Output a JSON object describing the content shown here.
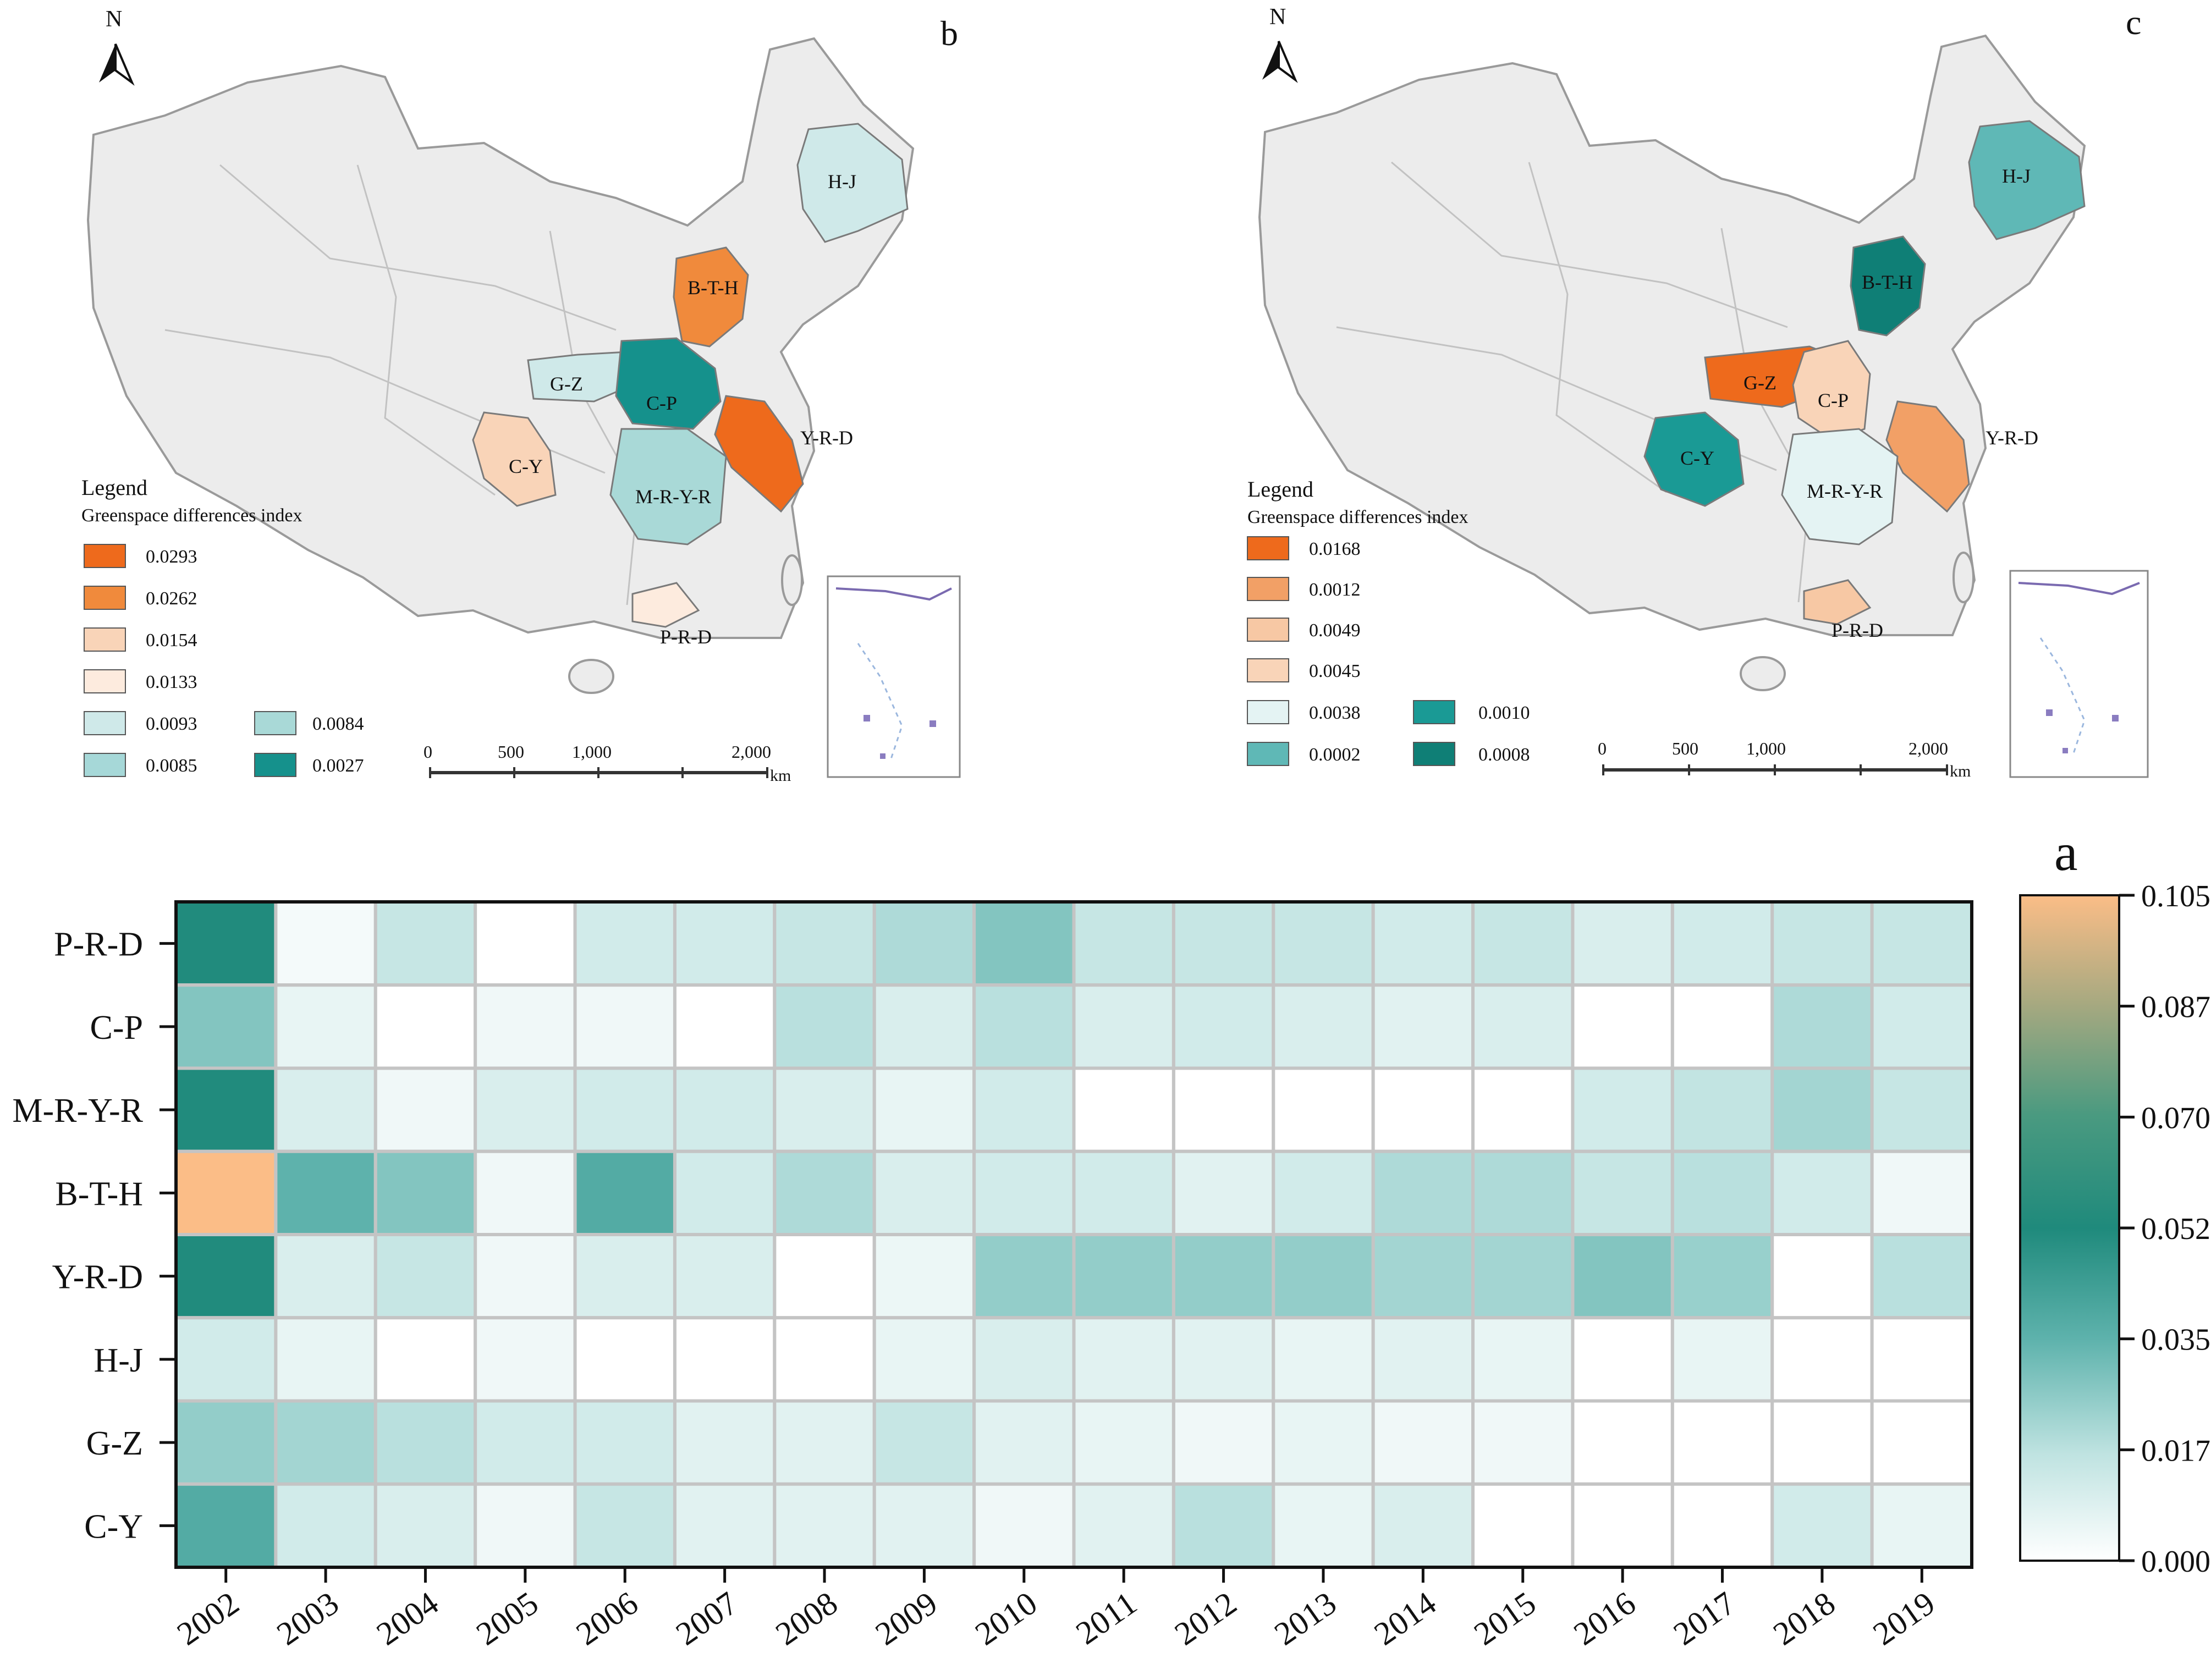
{
  "map_b": {
    "panel_label": "b",
    "north": "N",
    "legend_title": "Legend",
    "legend_subtitle": "Greenspace differences  index",
    "legend": [
      {
        "value": "0.0293",
        "color": "#ee6a1c"
      },
      {
        "value": "0.0262",
        "color": "#f08a3c"
      },
      {
        "value": "0.0154",
        "color": "#f9d4b8"
      },
      {
        "value": "0.0133",
        "color": "#fdebde"
      },
      {
        "value": "0.0093",
        "color": "#cfe9e9"
      },
      {
        "value": "0.0085",
        "color": "#a6d8d8"
      },
      {
        "value": "0.0084",
        "color": "#a9d9d7"
      },
      {
        "value": "0.0027",
        "color": "#15918c"
      }
    ],
    "regions": [
      {
        "label": "H-J",
        "color": "#cfe9e9"
      },
      {
        "label": "B-T-H",
        "color": "#f08a3c"
      },
      {
        "label": "G-Z",
        "color": "#cfe9e9"
      },
      {
        "label": "C-P",
        "color": "#15918c"
      },
      {
        "label": "Y-R-D",
        "color": "#ee6a1c"
      },
      {
        "label": "C-Y",
        "color": "#f9d4b8"
      },
      {
        "label": "M-R-Y-R",
        "color": "#a9d9d7"
      },
      {
        "label": "P-R-D",
        "color": "#fdebde"
      }
    ],
    "scale": [
      "0",
      "500",
      "1,000",
      "2,000"
    ],
    "scale_unit": "km"
  },
  "map_c": {
    "panel_label": "c",
    "north": "N",
    "legend_title": "Legend",
    "legend_subtitle": "Greenspace differences  index",
    "legend": [
      {
        "value": "0.0168",
        "color": "#ee6a1c"
      },
      {
        "value": "0.0012",
        "color": "#f2a066"
      },
      {
        "value": "0.0049",
        "color": "#f7c8a4"
      },
      {
        "value": "0.0045",
        "color": "#f9d4b8"
      },
      {
        "value": "0.0038",
        "color": "#e4f3f3"
      },
      {
        "value": "0.0002",
        "color": "#5fb8b6"
      },
      {
        "value": "0.0010",
        "color": "#1a9a95"
      },
      {
        "value": "0.0008",
        "color": "#0f7f76"
      }
    ],
    "regions": [
      {
        "label": "H-J",
        "color": "#5fb8b6"
      },
      {
        "label": "B-T-H",
        "color": "#0f7f76"
      },
      {
        "label": "G-Z",
        "color": "#ee6a1c"
      },
      {
        "label": "C-P",
        "color": "#f9d4b8"
      },
      {
        "label": "Y-R-D",
        "color": "#f2a066"
      },
      {
        "label": "C-Y",
        "color": "#1a9a95"
      },
      {
        "label": "M-R-Y-R",
        "color": "#e4f3f3"
      },
      {
        "label": "P-R-D",
        "color": "#f7c8a4"
      }
    ],
    "scale": [
      "0",
      "500",
      "1,000",
      "2,000"
    ],
    "scale_unit": "km"
  },
  "chart_data": {
    "type": "heatmap",
    "panel_label": "a",
    "rows": [
      "P-R-D",
      "C-P",
      "M-R-Y-R",
      "B-T-H",
      "Y-R-D",
      "H-J",
      "G-Z",
      "C-Y"
    ],
    "columns": [
      "2002",
      "2003",
      "2004",
      "2005",
      "2006",
      "2007",
      "2008",
      "2009",
      "2010",
      "2011",
      "2012",
      "2013",
      "2014",
      "2015",
      "2016",
      "2017",
      "2018",
      "2019"
    ],
    "values": [
      [
        0.052,
        0.003,
        0.015,
        0.0,
        0.012,
        0.012,
        0.015,
        0.02,
        0.028,
        0.015,
        0.015,
        0.015,
        0.012,
        0.015,
        0.01,
        0.012,
        0.015,
        0.015
      ],
      [
        0.028,
        0.006,
        0.0,
        0.004,
        0.004,
        0.0,
        0.018,
        0.01,
        0.018,
        0.01,
        0.012,
        0.01,
        0.008,
        0.01,
        0.0,
        0.0,
        0.02,
        0.012
      ],
      [
        0.052,
        0.01,
        0.004,
        0.01,
        0.012,
        0.012,
        0.01,
        0.006,
        0.012,
        0.0,
        0.0,
        0.0,
        0.0,
        0.0,
        0.012,
        0.016,
        0.022,
        0.015
      ],
      [
        0.105,
        0.035,
        0.028,
        0.004,
        0.038,
        0.012,
        0.02,
        0.01,
        0.012,
        0.012,
        0.008,
        0.012,
        0.02,
        0.02,
        0.015,
        0.018,
        0.012,
        0.004
      ],
      [
        0.052,
        0.01,
        0.015,
        0.004,
        0.01,
        0.01,
        0.0,
        0.005,
        0.025,
        0.025,
        0.025,
        0.025,
        0.022,
        0.022,
        0.028,
        0.024,
        0.0,
        0.018
      ],
      [
        0.012,
        0.006,
        0.0,
        0.004,
        0.0,
        0.0,
        0.0,
        0.006,
        0.01,
        0.008,
        0.008,
        0.006,
        0.008,
        0.006,
        0.0,
        0.006,
        0.0,
        0.0
      ],
      [
        0.025,
        0.022,
        0.018,
        0.012,
        0.012,
        0.008,
        0.008,
        0.015,
        0.008,
        0.006,
        0.004,
        0.006,
        0.004,
        0.004,
        0.0,
        0.0,
        0.0,
        0.0
      ],
      [
        0.038,
        0.012,
        0.01,
        0.004,
        0.015,
        0.008,
        0.008,
        0.008,
        0.004,
        0.008,
        0.018,
        0.006,
        0.01,
        0.0,
        0.0,
        0.0,
        0.012,
        0.006
      ]
    ],
    "colorbar_range": [
      0.0,
      0.105
    ],
    "colorbar_ticks": [
      "0.105",
      "0.087",
      "0.070",
      "0.052",
      "0.035",
      "0.017",
      "0.000"
    ]
  }
}
